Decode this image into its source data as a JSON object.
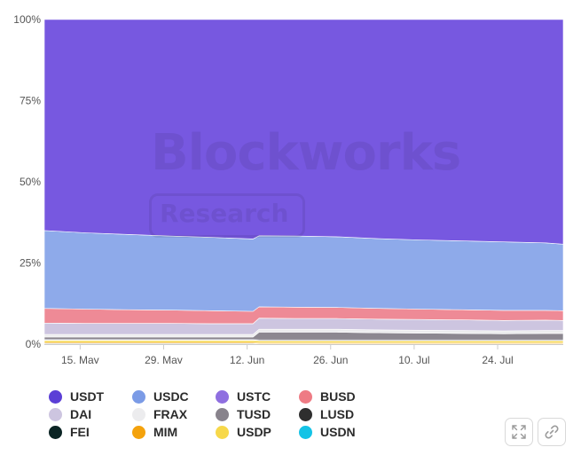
{
  "chart_data": {
    "type": "area",
    "stacked": true,
    "normalized": true,
    "ylim": [
      0,
      100
    ],
    "yticks": [
      "0%",
      "25%",
      "50%",
      "75%",
      "100%"
    ],
    "xticks": [
      "15. May",
      "29. May",
      "12. Jun",
      "26. Jun",
      "10. Jul",
      "24. Jul"
    ],
    "x": [
      "May 9",
      "May 16",
      "May 23",
      "May 30",
      "Jun 6",
      "Jun 13",
      "Jun 14",
      "Jun 20",
      "Jun 27",
      "Jul 4",
      "Jul 11",
      "Jul 18",
      "Jul 25",
      "Aug 1",
      "Aug 4"
    ],
    "grid": false,
    "legend_position": "bottom",
    "series": [
      {
        "name": "FEI",
        "color": "#0b2a2a",
        "values": [
          0.2,
          0.2,
          0.2,
          0.2,
          0.2,
          0.2,
          0.1,
          0.1,
          0.1,
          0.1,
          0.1,
          0.1,
          0.1,
          0.1,
          0.1
        ]
      },
      {
        "name": "MIM",
        "color": "#f4a20c",
        "values": [
          0.3,
          0.3,
          0.3,
          0.3,
          0.3,
          0.3,
          0.3,
          0.3,
          0.3,
          0.3,
          0.3,
          0.3,
          0.3,
          0.3,
          0.3
        ]
      },
      {
        "name": "USDP",
        "color": "#f5d547",
        "values": [
          0.6,
          0.6,
          0.6,
          0.6,
          0.6,
          0.6,
          0.6,
          0.6,
          0.6,
          0.6,
          0.6,
          0.6,
          0.6,
          0.6,
          0.6
        ]
      },
      {
        "name": "USDN",
        "color": "#14c3e6",
        "values": [
          0.1,
          0.1,
          0.1,
          0.1,
          0.1,
          0.1,
          0.1,
          0.1,
          0.1,
          0.1,
          0.1,
          0.1,
          0.1,
          0.1,
          0.1
        ]
      },
      {
        "name": "LUSD",
        "color": "#3a3a3a",
        "values": [
          0.2,
          0.2,
          0.2,
          0.2,
          0.2,
          0.2,
          0.2,
          0.2,
          0.2,
          0.2,
          0.2,
          0.2,
          0.2,
          0.2,
          0.2
        ]
      },
      {
        "name": "TUSD",
        "color": "#8c8790",
        "values": [
          0.8,
          0.8,
          0.8,
          0.8,
          0.8,
          0.8,
          2.4,
          2.4,
          2.4,
          2.2,
          2.1,
          2.0,
          1.9,
          2.0,
          2.0
        ]
      },
      {
        "name": "FRAX",
        "color": "#ececee",
        "values": [
          0.8,
          0.8,
          0.8,
          0.8,
          0.8,
          0.8,
          0.9,
          0.9,
          0.9,
          0.9,
          0.9,
          0.9,
          0.9,
          0.9,
          0.9
        ]
      },
      {
        "name": "DAI",
        "color": "#cdc5e0",
        "values": [
          3.5,
          3.4,
          3.4,
          3.4,
          3.3,
          3.3,
          3.4,
          3.3,
          3.3,
          3.3,
          3.3,
          3.3,
          3.2,
          3.2,
          3.1
        ]
      },
      {
        "name": "USTC",
        "color": "#8f6fe0",
        "values": [
          0.0,
          0.0,
          0.0,
          0.0,
          0.0,
          0.0,
          0.0,
          0.0,
          0.0,
          0.0,
          0.0,
          0.0,
          0.0,
          0.0,
          0.0
        ]
      },
      {
        "name": "BUSD",
        "color": "#ee8a96",
        "values": [
          4.5,
          4.4,
          4.2,
          4.1,
          4.0,
          3.8,
          3.5,
          3.5,
          3.4,
          3.3,
          3.2,
          3.1,
          3.1,
          3.0,
          3.0
        ]
      },
      {
        "name": "USDC",
        "color": "#8eaaea",
        "values": [
          24.0,
          23.5,
          23.2,
          22.8,
          22.6,
          22.3,
          21.9,
          21.9,
          21.8,
          21.5,
          21.3,
          21.2,
          21.1,
          20.8,
          20.5
        ]
      },
      {
        "name": "USDT",
        "color": "#7758e0",
        "values": [
          64.0,
          64.8,
          65.3,
          65.8,
          66.2,
          66.7,
          65.7,
          66.0,
          66.4,
          66.8,
          67.2,
          67.6,
          67.9,
          68.3,
          68.5
        ]
      }
    ]
  },
  "legend": {
    "items": [
      {
        "name": "USDT",
        "color": "#5b3fd6"
      },
      {
        "name": "USDC",
        "color": "#7b9be6"
      },
      {
        "name": "USTC",
        "color": "#8f6fe0"
      },
      {
        "name": "BUSD",
        "color": "#ee7b84"
      },
      {
        "name": "DAI",
        "color": "#cdc5e0"
      },
      {
        "name": "FRAX",
        "color": "#ececee"
      },
      {
        "name": "TUSD",
        "color": "#88838c"
      },
      {
        "name": "LUSD",
        "color": "#2e2e2e"
      },
      {
        "name": "FEI",
        "color": "#0b2424"
      },
      {
        "name": "MIM",
        "color": "#f4a20c"
      },
      {
        "name": "USDP",
        "color": "#f7d84a"
      },
      {
        "name": "USDN",
        "color": "#14c3e6"
      }
    ]
  },
  "watermark": {
    "title": "Blockworks",
    "subtitle": "Research"
  },
  "toolbar": {
    "expand_icon": "expand-icon",
    "link_icon": "link-icon"
  }
}
